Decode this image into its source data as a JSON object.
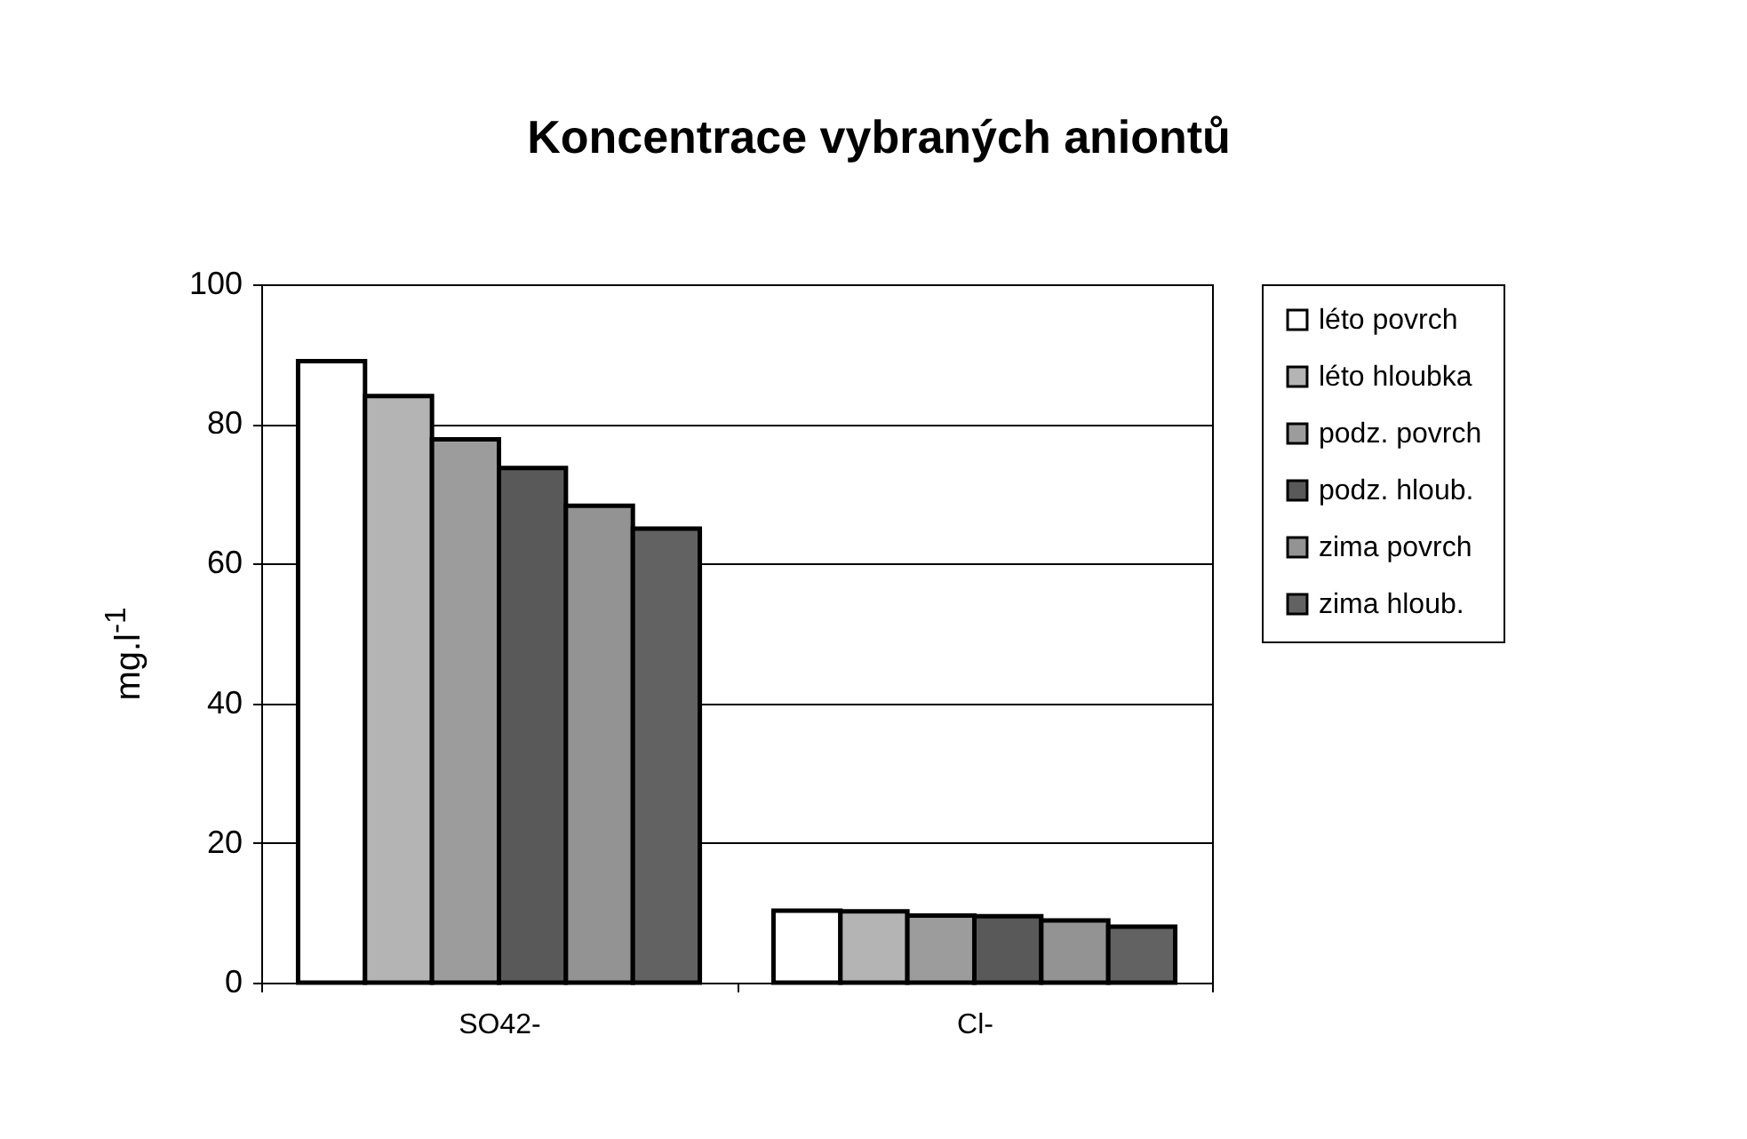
{
  "chart_data": {
    "type": "bar",
    "title": "Koncentrace vybraných aniontů",
    "ylabel": "mg.l$^{-1}$",
    "categories": [
      "SO42-",
      "Cl-"
    ],
    "series": [
      {
        "name": "léto povrch",
        "color": "#ffffff",
        "values": [
          89,
          10.3
        ]
      },
      {
        "name": "léto hloubka",
        "color": "#b4b4b4",
        "values": [
          84,
          10.2
        ]
      },
      {
        "name": "podz. povrch",
        "color": "#9c9c9c",
        "values": [
          77.8,
          9.6
        ]
      },
      {
        "name": "podz. hloub.",
        "color": "#595959",
        "values": [
          73.7,
          9.5
        ]
      },
      {
        "name": "zima povrch",
        "color": "#939393",
        "values": [
          68.3,
          8.9
        ]
      },
      {
        "name": "zima hloub.",
        "color": "#626262",
        "values": [
          65,
          8
        ]
      }
    ],
    "ylim": [
      0,
      100
    ],
    "yticks": [
      0,
      20,
      40,
      60,
      80,
      100
    ],
    "grid": "y",
    "legend": "right"
  }
}
